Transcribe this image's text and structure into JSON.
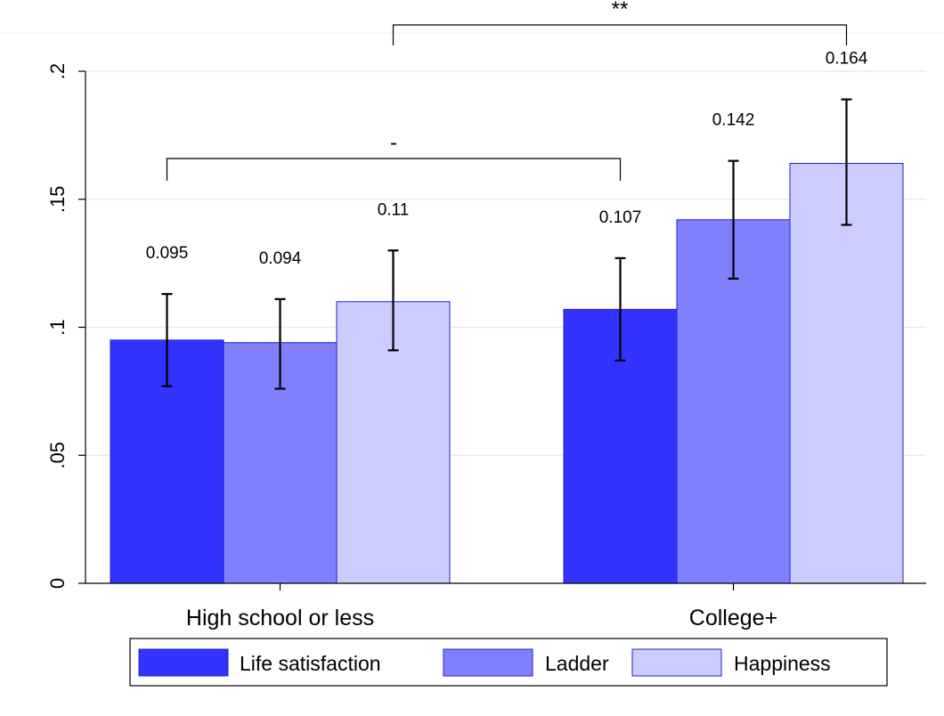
{
  "chart_data": {
    "type": "bar",
    "categories": [
      "High school or less",
      "College+"
    ],
    "series": [
      {
        "name": "Life satisfaction",
        "color": "#3333ff",
        "values": [
          0.095,
          0.107
        ],
        "ci_low": [
          0.077,
          0.087
        ],
        "ci_high": [
          0.113,
          0.127
        ]
      },
      {
        "name": "Ladder",
        "color": "#8080ff",
        "values": [
          0.094,
          0.142
        ],
        "ci_low": [
          0.076,
          0.119
        ],
        "ci_high": [
          0.111,
          0.165
        ]
      },
      {
        "name": "Happiness",
        "color": "#ccccff",
        "values": [
          0.11,
          0.164
        ],
        "ci_low": [
          0.091,
          0.14
        ],
        "ci_high": [
          0.13,
          0.189
        ]
      }
    ],
    "data_labels": [
      [
        "0.095",
        "0.107"
      ],
      [
        "0.094",
        "0.142"
      ],
      [
        "0.11",
        "0.164"
      ]
    ],
    "y_ticks": [
      0,
      0.05,
      0.1,
      0.15,
      0.2
    ],
    "y_tick_labels": [
      "0",
      ".05",
      ".1",
      ".15",
      ".2"
    ],
    "ylim": [
      0,
      0.2
    ],
    "grid": true,
    "legend_position": "bottom",
    "significance": [
      {
        "label": "-",
        "from_category": 0,
        "from_series": 0,
        "to_category": 1,
        "to_series": 0
      },
      {
        "label": "**",
        "from_category": 0,
        "from_series": 2,
        "to_category": 1,
        "to_series": 2
      }
    ],
    "title": "",
    "xlabel": "",
    "ylabel": ""
  }
}
